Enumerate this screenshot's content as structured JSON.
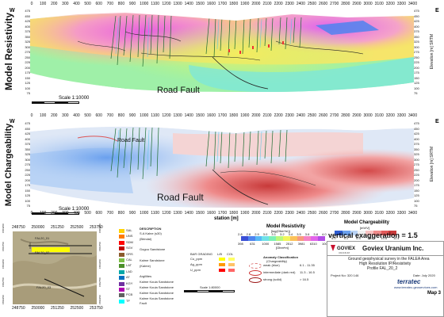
{
  "top_section": {
    "side_left": "W",
    "side_right": "E",
    "vertical_title": "Model Resistivity",
    "elevation_label": "Elevation [m] SRTM",
    "annotation": "Road Fault",
    "scale_text": "Scale 1:10000",
    "x_ticks": [
      "0",
      "100",
      "200",
      "300",
      "400",
      "500",
      "600",
      "700",
      "800",
      "900",
      "1000",
      "1100",
      "1200",
      "1300",
      "1400",
      "1500",
      "1600",
      "1700",
      "1800",
      "1900",
      "2000",
      "2100",
      "2200",
      "2300",
      "2400",
      "2500",
      "2600",
      "2700",
      "2800",
      "2900",
      "3000",
      "3100",
      "3200",
      "3300",
      "3400"
    ],
    "elev_ticks": [
      "475",
      "450",
      "425",
      "400",
      "375",
      "350",
      "325",
      "300",
      "275",
      "250",
      "225",
      "200",
      "175",
      "150",
      "125",
      "100",
      "75"
    ]
  },
  "middle_section": {
    "side_left": "W",
    "side_right": "E",
    "vertical_title": "Model Chargeability",
    "elevation_label": "Elevation [m] SRTM",
    "annotation_main": "Road Fault",
    "annotation_small": "Road Fault",
    "scale_text": "Scale 1:10000",
    "station_label": "station [m]",
    "x_ticks": [
      "0",
      "100",
      "200",
      "300",
      "400",
      "500",
      "600",
      "700",
      "800",
      "900",
      "1000",
      "1100",
      "1200",
      "1300",
      "1400",
      "1500",
      "1600",
      "1700",
      "1800",
      "1900",
      "2000",
      "2100",
      "2200",
      "2300",
      "2400",
      "2500",
      "2600",
      "2700",
      "2800",
      "2900",
      "3000",
      "3100",
      "3200",
      "3300",
      "3400"
    ],
    "elev_ticks": [
      "475",
      "450",
      "425",
      "400",
      "375",
      "350",
      "325",
      "300",
      "275",
      "250",
      "225",
      "200",
      "175",
      "150",
      "125",
      "100",
      "75"
    ]
  },
  "map_inset": {
    "top_ticks": [
      "248750",
      "250000",
      "251250",
      "252500",
      "253750"
    ],
    "bottom_ticks": [
      "248750",
      "250000",
      "251250",
      "252500",
      "253750"
    ],
    "left_ticks": [
      "1584250",
      "1583750",
      "1583250",
      "1582750",
      "1582250"
    ],
    "right_ticks": [
      "1584250",
      "1583750",
      "1583250",
      "1582750",
      "1582250"
    ],
    "profile_labels": [
      "FAL20_01",
      "FAL20_02",
      "FAL20_03"
    ],
    "scale_text": "Scale 1:80000"
  },
  "lithology_legend": {
    "title": "DESCRIPTION",
    "items": [
      "S.A Kalne (s30)",
      "(Brindai)",
      "",
      "Gogou Sandstone",
      "",
      "Kalme Sandstone",
      "(Kalme)",
      "",
      "Argillites",
      "Kalme Kouia Sandstone",
      "Kalme Kouia Sandstone",
      "Kalme Kouia Sandstone",
      "Kalme Kouia Sandstone",
      "Fault"
    ],
    "codes": [
      "SAL",
      "UNS",
      "SDM",
      "SGV",
      "GRS",
      "CAL",
      "LAT",
      "LAD",
      "AT",
      "KGY",
      "ST",
      "PCB",
      "TF"
    ],
    "code_colors": [
      "#ffd200",
      "#ff7b00",
      "#ff0000",
      "#c00000",
      "#8a5a2b",
      "#7cbf45",
      "#4b8f2a",
      "#00a8a8",
      "#0070c0",
      "#7030a0",
      "#b000b0",
      "#606060",
      "#00ffff"
    ]
  },
  "bar_legend": {
    "title": "BAR GRADING",
    "rows": [
      "Cu_ppm",
      "Ag_ppm",
      "U_ppm"
    ],
    "col_headers": [
      "L/B",
      "COL"
    ],
    "swatch_colors": [
      "#ffff00",
      "#ff9900",
      "#ff0000"
    ]
  },
  "resistivity_scale": {
    "title": "Model Resistivity",
    "unit": "[log(Ohm*m)]",
    "upper_ticks": [
      "2.8",
      "2.8",
      "2.9",
      "3.0",
      "3.1",
      "3.2",
      "3.4",
      "3.5",
      "3.6",
      "3.8",
      "4.0"
    ],
    "lower_ticks": [
      "398",
      "631",
      "1000",
      "1585",
      "2512",
      "3981",
      "6310",
      "10000"
    ],
    "lower_unit": "[Ohm*m]",
    "colors": [
      "#3a4fd6",
      "#4f84ef",
      "#59b8f5",
      "#6fe1e8",
      "#7cf0b5",
      "#b9f87c",
      "#f1f55c",
      "#fbc25a",
      "#f79a7d",
      "#f583c4",
      "#e264ea",
      "#b24fe6"
    ]
  },
  "chargeability_scale": {
    "title": "Model Chargeability",
    "unit": "[mV/V]",
    "ticks": [
      "4.0",
      "5.1",
      "6.5",
      "8.3",
      "10.6",
      "11.4"
    ],
    "colors": [
      "#2c5bd1",
      "#6aa0ee",
      "#b9d3f5",
      "#f0f0f0",
      "#f7c2c2",
      "#ef8b8b",
      "#e35a5a",
      "#c83a3a"
    ]
  },
  "vertical_exaggeration": "vertical exaggeration = 1.5",
  "anomaly_legend": {
    "title": "Anomaly Classification",
    "subtitle": "(Chargeability)",
    "rows": [
      {
        "label": "weak (blue)",
        "range": "6.1 - 11.35"
      },
      {
        "label": "intermediate (dark red)",
        "range": "11.3 - 16.5"
      },
      {
        "label": "strong (solid)",
        "range": "> 16.5"
      }
    ]
  },
  "title_block": {
    "company": "Goviex Uranium Inc.",
    "logo_text": "GOVIEX",
    "logo_sub": "URANIUM",
    "description_line1": "Ground geophysical survey in the FALEA Area",
    "description_line2": "High Resolution IP/Resistivity",
    "description_line3": "Profile FAL_20_2",
    "project_label": "Project No: 320 146",
    "date_label": "Date: July 2020",
    "contractor": "terratec",
    "contractor_url": "www.terratec-geoservices.com",
    "map_label": "Map 3"
  },
  "colors": {
    "accent_red": "#c8102e",
    "terratec_blue": "#1a3a7a"
  }
}
